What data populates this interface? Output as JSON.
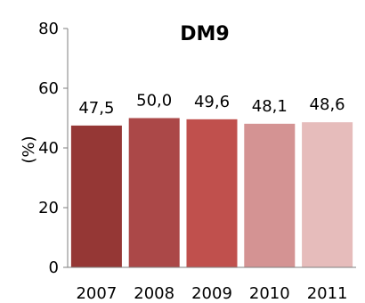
{
  "chart_data": {
    "type": "bar",
    "title": "DM9",
    "ylabel": "(%)",
    "xlabel": "",
    "categories": [
      "2007",
      "2008",
      "2009",
      "2010",
      "2011"
    ],
    "values": [
      47.5,
      50.0,
      49.6,
      48.1,
      48.6
    ],
    "data_labels": [
      "47,5",
      "50,0",
      "49,6",
      "48,1",
      "48,6"
    ],
    "bar_colors": [
      "#953735",
      "#ab4848",
      "#c0504d",
      "#d49393",
      "#e6bcbb"
    ],
    "ylim": [
      0,
      80
    ],
    "yticks": [
      0,
      20,
      40,
      60,
      80
    ],
    "ytick_labels": [
      "0",
      "20",
      "40",
      "60",
      "80"
    ],
    "grid": false,
    "legend": "none"
  }
}
